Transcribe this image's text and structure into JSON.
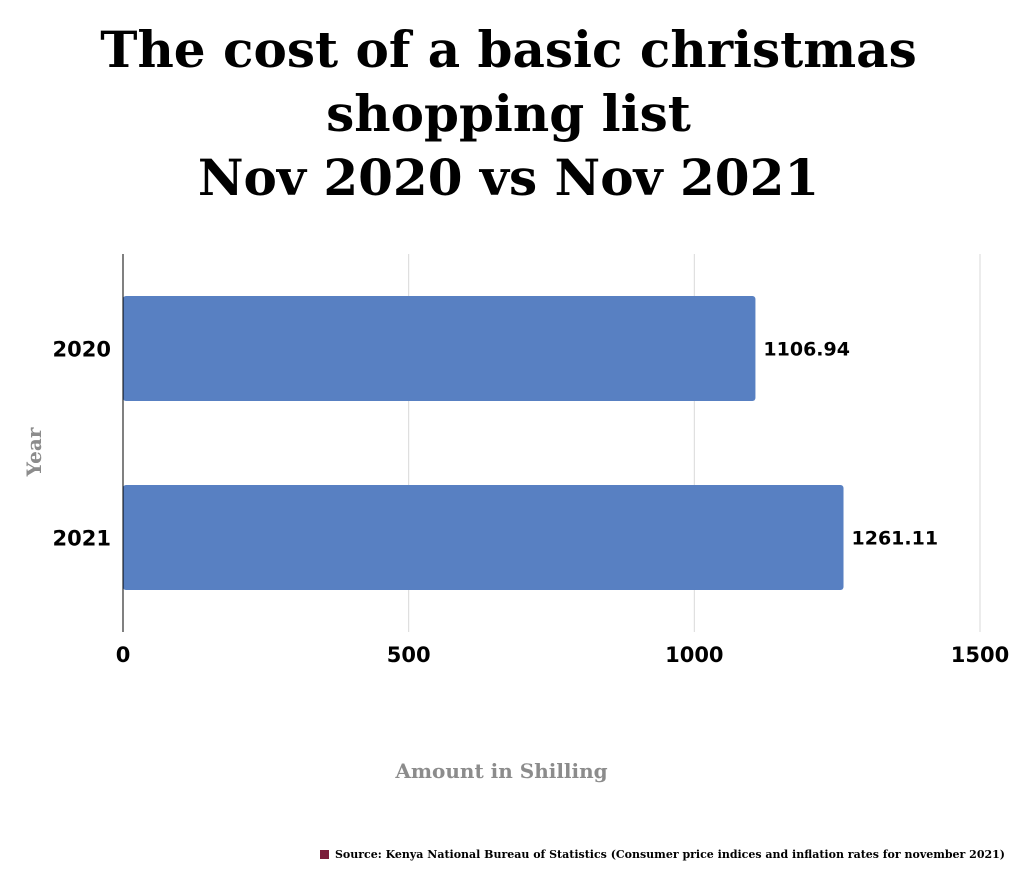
{
  "chart_data": {
    "type": "bar",
    "orientation": "horizontal",
    "title_lines": [
      "The cost of a basic christmas",
      "shopping list",
      "Nov 2020 vs Nov 2021"
    ],
    "categories": [
      "2020",
      "2021"
    ],
    "values": [
      1106.94,
      1261.11
    ],
    "value_labels": [
      "1106.94",
      "1261.11"
    ],
    "xlabel": "Amount in Shilling",
    "ylabel": "Year",
    "xlim": [
      0,
      1500
    ],
    "x_ticks": [
      0,
      500,
      1000,
      1500
    ],
    "x_tick_labels": [
      "0",
      "500",
      "1000",
      "1500"
    ],
    "grid": "vertical",
    "bar_color": "#5880c2"
  },
  "source": {
    "text": "Source: Kenya National Bureau of Statistics (Consumer price indices and inflation rates for november 2021)",
    "swatch_color": "#7b1c3a"
  }
}
